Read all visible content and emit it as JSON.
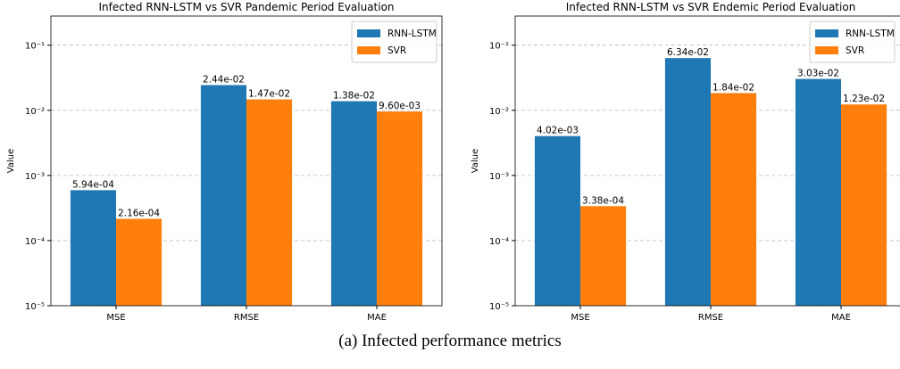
{
  "chart_data": [
    {
      "type": "bar",
      "title": "Infected RNN-LSTM vs SVR Pandemic Period Evaluation",
      "y_label": "Value",
      "categories": [
        "MSE",
        "RMSE",
        "MAE"
      ],
      "series": [
        {
          "name": "RNN-LSTM",
          "color": "#1f77b4",
          "values": [
            0.000594,
            0.0244,
            0.0138
          ],
          "value_labels": [
            "5.94e-04",
            "2.44e-02",
            "1.38e-02"
          ]
        },
        {
          "name": "SVR",
          "color": "#ff7f0e",
          "values": [
            0.000216,
            0.0147,
            0.0096
          ],
          "value_labels": [
            "2.16e-04",
            "1.47e-02",
            "9.60e-03"
          ]
        }
      ],
      "log_scale": true,
      "ylim": [
        1e-05,
        0.28
      ],
      "yticks": [
        {
          "value": 1e-05,
          "label": "10⁻⁵"
        },
        {
          "value": 0.0001,
          "label": "10⁻⁴"
        },
        {
          "value": 0.001,
          "label": "10⁻³"
        },
        {
          "value": 0.01,
          "label": "10⁻²"
        },
        {
          "value": 0.1,
          "label": "10⁻¹"
        }
      ],
      "grid": true,
      "legend": "upper right"
    },
    {
      "type": "bar",
      "title": "Infected RNN-LSTM vs SVR Endemic Period Evaluation",
      "y_label": "Value",
      "categories": [
        "MSE",
        "RMSE",
        "MAE"
      ],
      "series": [
        {
          "name": "RNN-LSTM",
          "color": "#1f77b4",
          "values": [
            0.00402,
            0.0634,
            0.0303
          ],
          "value_labels": [
            "4.02e-03",
            "6.34e-02",
            "3.03e-02"
          ]
        },
        {
          "name": "SVR",
          "color": "#ff7f0e",
          "values": [
            0.000338,
            0.0184,
            0.0123
          ],
          "value_labels": [
            "3.38e-04",
            "1.84e-02",
            "1.23e-02"
          ]
        }
      ],
      "log_scale": true,
      "ylim": [
        1e-05,
        0.28
      ],
      "yticks": [
        {
          "value": 1e-05,
          "label": "10⁻⁵"
        },
        {
          "value": 0.0001,
          "label": "10⁻⁴"
        },
        {
          "value": 0.001,
          "label": "10⁻³"
        },
        {
          "value": 0.01,
          "label": "10⁻²"
        },
        {
          "value": 0.1,
          "label": "10⁻¹"
        }
      ],
      "grid": true,
      "legend": "upper right"
    }
  ],
  "caption": "(a)    Infected performance metrics"
}
